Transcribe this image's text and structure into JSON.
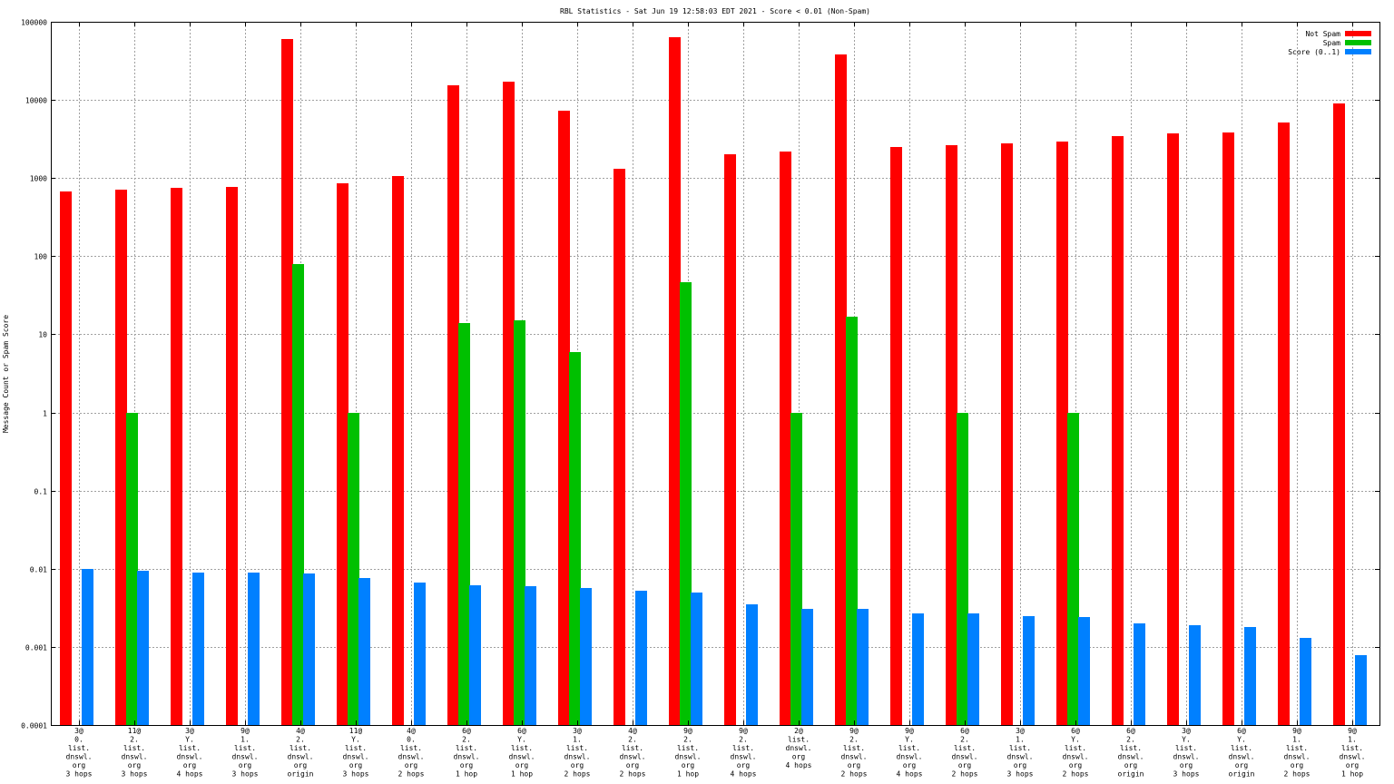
{
  "chart_data": {
    "type": "bar",
    "title": "RBL Statistics - Sat Jun 19 12:58:03 EDT 2021 - Score < 0.01 (Non-Spam)",
    "xlabel": "",
    "ylabel": "Message Count or Spam Score",
    "yscale": "log",
    "ylim": [
      0.0001,
      100000
    ],
    "yticks": [
      "100000",
      "10000",
      "1000",
      "100",
      "10",
      "1",
      "0.1",
      "0.01",
      "0.001",
      "0.0001"
    ],
    "grid": true,
    "legend_position": "top-right",
    "categories": [
      [
        "3@",
        "0.",
        "list.",
        "dnswl.",
        "org",
        "3 hops"
      ],
      [
        "11@",
        "2.",
        "list.",
        "dnswl.",
        "org",
        "3 hops"
      ],
      [
        "3@",
        "Y.",
        "list.",
        "dnswl.",
        "org",
        "4 hops"
      ],
      [
        "9@",
        "1.",
        "list.",
        "dnswl.",
        "org",
        "3 hops"
      ],
      [
        "4@",
        "2.",
        "list.",
        "dnswl.",
        "org",
        "origin"
      ],
      [
        "11@",
        "Y.",
        "list.",
        "dnswl.",
        "org",
        "3 hops"
      ],
      [
        "4@",
        "0.",
        "list.",
        "dnswl.",
        "org",
        "2 hops"
      ],
      [
        "6@",
        "2.",
        "list.",
        "dnswl.",
        "org",
        "1 hop"
      ],
      [
        "6@",
        "Y.",
        "list.",
        "dnswl.",
        "org",
        "1 hop"
      ],
      [
        "3@",
        "1.",
        "list.",
        "dnswl.",
        "org",
        "2 hops"
      ],
      [
        "4@",
        "2.",
        "list.",
        "dnswl.",
        "org",
        "2 hops"
      ],
      [
        "9@",
        "2.",
        "list.",
        "dnswl.",
        "org",
        "1 hop"
      ],
      [
        "9@",
        "2.",
        "list.",
        "dnswl.",
        "org",
        "4 hops"
      ],
      [
        "2@",
        "list.",
        "dnswl.",
        "org",
        "4 hops"
      ],
      [
        "9@",
        "2.",
        "list.",
        "dnswl.",
        "org",
        "2 hops"
      ],
      [
        "9@",
        "Y.",
        "list.",
        "dnswl.",
        "org",
        "4 hops"
      ],
      [
        "6@",
        "2.",
        "list.",
        "dnswl.",
        "org",
        "2 hops"
      ],
      [
        "3@",
        "1.",
        "list.",
        "dnswl.",
        "org",
        "3 hops"
      ],
      [
        "6@",
        "Y.",
        "list.",
        "dnswl.",
        "org",
        "2 hops"
      ],
      [
        "6@",
        "2.",
        "list.",
        "dnswl.",
        "org",
        "origin"
      ],
      [
        "3@",
        "Y.",
        "list.",
        "dnswl.",
        "org",
        "3 hops"
      ],
      [
        "6@",
        "Y.",
        "list.",
        "dnswl.",
        "org",
        "origin"
      ],
      [
        "9@",
        "1.",
        "list.",
        "dnswl.",
        "org",
        "2 hops"
      ],
      [
        "9@",
        "1.",
        "list.",
        "dnswl.",
        "org",
        "1 hop"
      ]
    ],
    "series": [
      {
        "name": "Not Spam",
        "color": "#ff0000",
        "values": [
          670,
          710,
          750,
          770,
          60000,
          860,
          1050,
          15500,
          17000,
          7200,
          1300,
          63000,
          2000,
          2200,
          38000,
          2500,
          2600,
          2800,
          2900,
          3400,
          3700,
          3800,
          5200,
          9000
        ]
      },
      {
        "name": "Spam",
        "color": "#00c000",
        "values": [
          null,
          1,
          null,
          null,
          80,
          1,
          null,
          14,
          15,
          6,
          null,
          47,
          null,
          1,
          17,
          null,
          1,
          null,
          1,
          null,
          null,
          null,
          null,
          null
        ]
      },
      {
        "name": "Score (0..1)",
        "color": "#0080ff",
        "values": [
          0.0099,
          0.0094,
          0.0089,
          0.0089,
          0.0087,
          0.0077,
          0.0066,
          0.0061,
          0.006,
          0.0056,
          0.0052,
          0.0049,
          0.0035,
          0.0031,
          0.0031,
          0.0027,
          0.0027,
          0.0025,
          0.0024,
          0.002,
          0.0019,
          0.0018,
          0.0013,
          0.00078
        ]
      }
    ]
  }
}
